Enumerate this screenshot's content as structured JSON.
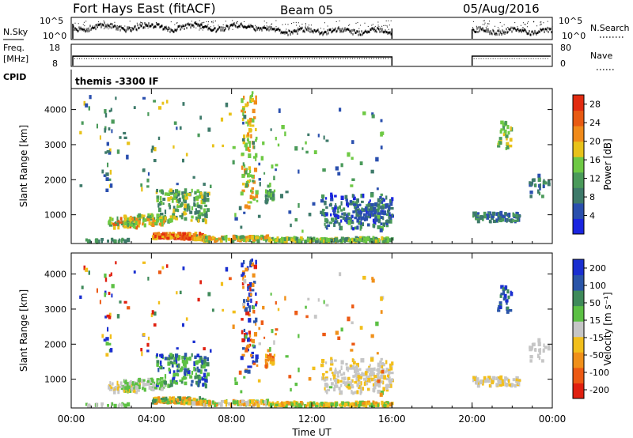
{
  "header": {
    "title": "Fort Hays East (fitACF)",
    "beam": "Beam 05",
    "date": "05/Aug/2016"
  },
  "strip_panels": {
    "nsky_label": "N.Sky",
    "nsky_ticks": [
      "10^5",
      "10^0"
    ],
    "nsearch_label": "N.Search",
    "nsearch_ticks": [
      "10^5",
      "10^0"
    ],
    "freq_label_line1": "Freq.",
    "freq_label_line2": "[MHz]",
    "freq_ticks": [
      "18",
      "8"
    ],
    "nave_label": "Nave",
    "nave_ticks": [
      "80",
      "0"
    ],
    "cpid_label": "CPID",
    "cpid_value": "themis -3300 IF"
  },
  "colors": {
    "power_scale": [
      "#1a25e0",
      "#2a4fae",
      "#3e7a6a",
      "#4a9a5a",
      "#6ec944",
      "#e8c21a",
      "#f08a1a",
      "#e85a12",
      "#e22b10"
    ],
    "velocity_scale": [
      "#1a2fd0",
      "#2a55a8",
      "#3f8a5a",
      "#5cc044",
      "#c6c6c6",
      "#f2bf1c",
      "#f0901a",
      "#ec5a14",
      "#e02010"
    ]
  },
  "chart_data": [
    {
      "type": "heatmap",
      "name": "power",
      "xlabel": "Time UT",
      "ylabel": "Slant Range [km]",
      "xlim": [
        0,
        24
      ],
      "ylim": [
        180,
        4600
      ],
      "x_ticks": [
        "00:00",
        "04:00",
        "08:00",
        "12:00",
        "16:00",
        "20:00",
        "00:00"
      ],
      "y_ticks": [
        1000,
        2000,
        3000,
        4000
      ],
      "colorbar_label": "Power [dB]",
      "colorbar_ticks": [
        4,
        8,
        12,
        16,
        20,
        24,
        28
      ],
      "colorbar_range": [
        0,
        30
      ],
      "data_gap_hours": [
        16.0,
        20.0
      ]
    },
    {
      "type": "heatmap",
      "name": "velocity",
      "xlabel": "Time UT",
      "ylabel": "Slant Range [km]",
      "xlim": [
        0,
        24
      ],
      "ylim": [
        180,
        4600
      ],
      "x_ticks": [
        "00:00",
        "04:00",
        "08:00",
        "12:00",
        "16:00",
        "20:00",
        "00:00"
      ],
      "y_ticks": [
        1000,
        2000,
        3000,
        4000
      ],
      "colorbar_label": "Velocity [m s⁻¹]",
      "colorbar_ticks": [
        200,
        100,
        50,
        15,
        -15,
        -50,
        -100,
        -200
      ],
      "data_gap_hours": [
        16.0,
        20.0
      ]
    }
  ]
}
